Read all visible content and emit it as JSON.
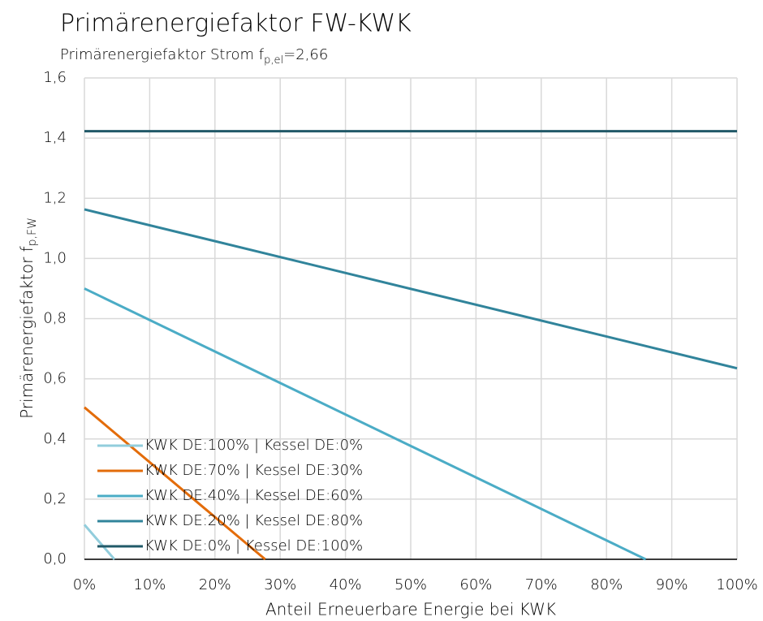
{
  "chart_data": {
    "type": "line",
    "title": "Primärenergiefaktor FW-KWK",
    "subtitle": {
      "text": "Primärenergiefaktor Strom f",
      "subscript": "p,el",
      "suffix": "=2,66"
    },
    "x_label": "Anteil Erneuerbare Energie bei KWK",
    "y_label": {
      "text": "Primärenergiefaktor f",
      "subscript": "p,FW"
    },
    "xlim": [
      0,
      100
    ],
    "ylim": [
      0,
      1.6
    ],
    "xticks": [
      {
        "value": 0,
        "label": "0%"
      },
      {
        "value": 10,
        "label": "10%"
      },
      {
        "value": 20,
        "label": "20%"
      },
      {
        "value": 30,
        "label": "30%"
      },
      {
        "value": 40,
        "label": "40%"
      },
      {
        "value": 50,
        "label": "50%"
      },
      {
        "value": 60,
        "label": "60%"
      },
      {
        "value": 70,
        "label": "70%"
      },
      {
        "value": 80,
        "label": "80%"
      },
      {
        "value": 90,
        "label": "90%"
      },
      {
        "value": 100,
        "label": "100%"
      }
    ],
    "yticks": [
      {
        "value": 0,
        "label": "0,0"
      },
      {
        "value": 0.2,
        "label": "0,2"
      },
      {
        "value": 0.4,
        "label": "0,4"
      },
      {
        "value": 0.6,
        "label": "0,6"
      },
      {
        "value": 0.8,
        "label": "0,8"
      },
      {
        "value": 1.0,
        "label": "1,0"
      },
      {
        "value": 1.2,
        "label": "1,2"
      },
      {
        "value": 1.4,
        "label": "1,4"
      },
      {
        "value": 1.6,
        "label": "1,6"
      }
    ],
    "grid": true,
    "legend": "lower-left",
    "series": [
      {
        "name": "KWK DE:100% | Kessel DE:0%",
        "color": "#92cddc",
        "x": [
          0,
          4.6
        ],
        "values": [
          0.115,
          0
        ]
      },
      {
        "name": "KWK DE:70% | Kessel DE:30%",
        "color": "#e36c0a",
        "x": [
          0,
          27.7
        ],
        "values": [
          0.505,
          0
        ]
      },
      {
        "name": "KWK DE:40% | Kessel DE:60%",
        "color": "#4bacc6",
        "x": [
          0,
          86
        ],
        "values": [
          0.9,
          0
        ]
      },
      {
        "name": "KWK DE:20% | Kessel DE:80%",
        "color": "#31849b",
        "x": [
          0,
          100
        ],
        "values": [
          1.163,
          0.635
        ]
      },
      {
        "name": "KWK DE:0% | Kessel DE:100%",
        "color": "#215968",
        "x": [
          0,
          100
        ],
        "values": [
          1.423,
          1.423
        ]
      }
    ]
  }
}
